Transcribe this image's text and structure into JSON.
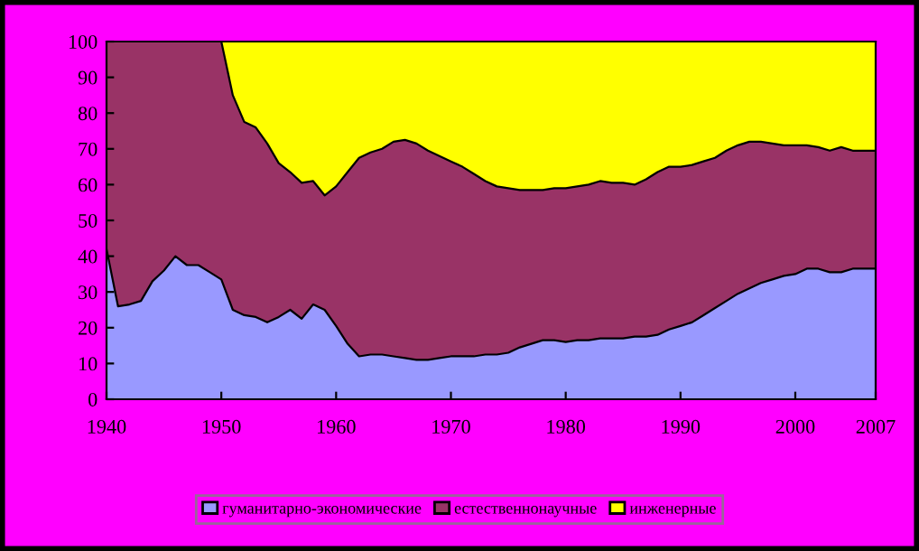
{
  "chart_data": {
    "type": "area",
    "stacked": true,
    "x": [
      1940,
      1941,
      1942,
      1943,
      1944,
      1945,
      1946,
      1947,
      1948,
      1949,
      1950,
      1951,
      1952,
      1953,
      1954,
      1955,
      1956,
      1957,
      1958,
      1959,
      1960,
      1961,
      1962,
      1963,
      1964,
      1965,
      1966,
      1967,
      1968,
      1969,
      1970,
      1971,
      1972,
      1973,
      1974,
      1975,
      1976,
      1977,
      1978,
      1979,
      1980,
      1981,
      1982,
      1983,
      1984,
      1985,
      1986,
      1987,
      1988,
      1989,
      1990,
      1991,
      1992,
      1993,
      1994,
      1995,
      1996,
      1997,
      1998,
      1999,
      2000,
      2001,
      2002,
      2003,
      2004,
      2005,
      2006,
      2007
    ],
    "series": [
      {
        "name": "гуманитарно-экономические",
        "color": "#9999ff",
        "values": [
          42,
          26,
          26.5,
          27.5,
          33,
          36,
          40,
          37.5,
          37.5,
          35.5,
          33.5,
          25,
          23.5,
          23,
          21.5,
          23,
          25,
          22.5,
          26.5,
          25,
          20.5,
          15.5,
          12,
          12.5,
          12.5,
          12,
          11.5,
          11,
          11,
          11.5,
          12,
          12,
          12,
          12.5,
          12.5,
          13,
          14.5,
          15.5,
          16.5,
          16.5,
          16,
          16.5,
          16.5,
          17,
          17,
          17,
          17.5,
          17.5,
          18,
          19.5,
          20.5,
          21.5,
          23.5,
          25.5,
          27.5,
          29.5,
          31,
          32.5,
          33.5,
          34.5,
          35,
          36.5,
          36.5,
          35.5,
          35.5,
          36.5,
          36.5,
          36.5
        ]
      },
      {
        "name": "естественнонаучные",
        "color": "#993366",
        "values": [
          58,
          74,
          73.5,
          72.5,
          67,
          64,
          60,
          62.5,
          62.5,
          64.5,
          66.5,
          60,
          54,
          53,
          50,
          43,
          38.5,
          38,
          34.5,
          32,
          39,
          48,
          55.5,
          56.5,
          57.5,
          60,
          61,
          60.5,
          58.5,
          56.5,
          54.5,
          53,
          51,
          48.5,
          47,
          46,
          44,
          43,
          42,
          42.5,
          43,
          43,
          43.5,
          44,
          43.5,
          43.5,
          42.5,
          44,
          45.5,
          45.5,
          44.5,
          44,
          43,
          42,
          42,
          41.5,
          41,
          39.5,
          38,
          36.5,
          36,
          34.5,
          34,
          34,
          35,
          33,
          33,
          33
        ]
      },
      {
        "name": "инженерные",
        "color": "#ffff00",
        "values": [
          0,
          0,
          0,
          0,
          0,
          0,
          0,
          0,
          0,
          0,
          0,
          15,
          22.5,
          24,
          28.5,
          34,
          36.5,
          39.5,
          39,
          43,
          40.5,
          36.5,
          32.5,
          31,
          30,
          28,
          27.5,
          28.5,
          30.5,
          32,
          33.5,
          35,
          37,
          39,
          40.5,
          41,
          41.5,
          41.5,
          41.5,
          41,
          41,
          40.5,
          40,
          39,
          39.5,
          39.5,
          40,
          38.5,
          36.5,
          35,
          35,
          34.5,
          33.5,
          32.5,
          30.5,
          29,
          28,
          28,
          28.5,
          29,
          29,
          29,
          29.5,
          30.5,
          29.5,
          30.5,
          30.5,
          30.5
        ]
      }
    ],
    "xlim": [
      1940,
      2007
    ],
    "xticks": [
      1940,
      1950,
      1960,
      1970,
      1980,
      1990,
      2000,
      2007
    ],
    "ylim": [
      0,
      100
    ],
    "yticks": [
      0,
      10,
      20,
      30,
      40,
      50,
      60,
      70,
      80,
      90,
      100
    ],
    "grid": false,
    "legend": "bottom"
  }
}
